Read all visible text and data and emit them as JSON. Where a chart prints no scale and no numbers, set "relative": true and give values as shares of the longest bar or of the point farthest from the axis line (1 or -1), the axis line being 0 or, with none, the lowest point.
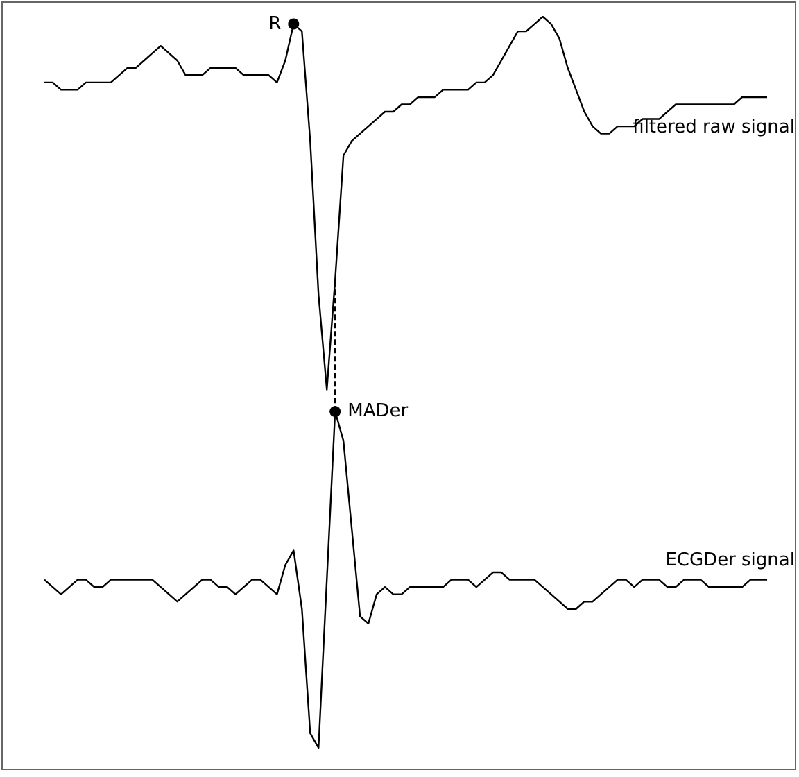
{
  "chart_data": {
    "type": "line",
    "relative": true,
    "marker": "none",
    "line_style": "solid",
    "categories": [
      null,
      null,
      null,
      null,
      null,
      null,
      null,
      null,
      null,
      null,
      null,
      null,
      null,
      null,
      null,
      null,
      null,
      null,
      null,
      null,
      null,
      null,
      null,
      null,
      null,
      null,
      null,
      null,
      null,
      null,
      null,
      null,
      null,
      null,
      null,
      null,
      null,
      null,
      null,
      null,
      null,
      null,
      null,
      null,
      null,
      null,
      null,
      null,
      null,
      null,
      null,
      null,
      null,
      null,
      null,
      null,
      null,
      null,
      null,
      null,
      null,
      null,
      null,
      null,
      null,
      null,
      null,
      null,
      null,
      null,
      null,
      null,
      null,
      null,
      null,
      null,
      null,
      null,
      null,
      null,
      null,
      null,
      null,
      null,
      null,
      null,
      null,
      null
    ],
    "series": [
      {
        "name": "filtered raw signal",
        "color": "#000000",
        "values": [
          0.91,
          0.91,
          0.9,
          0.9,
          0.9,
          0.91,
          0.91,
          0.91,
          0.91,
          0.92,
          0.93,
          0.93,
          0.94,
          0.95,
          0.96,
          0.95,
          0.94,
          0.92,
          0.92,
          0.92,
          0.93,
          0.93,
          0.93,
          0.93,
          0.92,
          0.92,
          0.92,
          0.92,
          0.91,
          0.94,
          0.99,
          0.98,
          0.83,
          0.62,
          0.49,
          0.64,
          0.81,
          0.83,
          0.84,
          0.85,
          0.86,
          0.87,
          0.87,
          0.88,
          0.88,
          0.89,
          0.89,
          0.89,
          0.9,
          0.9,
          0.9,
          0.9,
          0.91,
          0.91,
          0.92,
          0.94,
          0.96,
          0.98,
          0.98,
          0.99,
          1,
          0.99,
          0.97,
          0.93,
          0.9,
          0.87,
          0.85,
          0.84,
          0.84,
          0.85,
          0.85,
          0.85,
          0.86,
          0.86,
          0.86,
          0.87,
          0.88,
          0.88,
          0.88,
          0.88,
          0.88,
          0.88,
          0.88,
          0.88,
          0.89,
          0.89,
          0.89,
          0.89
        ]
      },
      {
        "name": "ECGDer signal",
        "color": "#000000",
        "values": [
          0.23,
          0.22,
          0.21,
          0.22,
          0.23,
          0.23,
          0.22,
          0.22,
          0.23,
          0.23,
          0.23,
          0.23,
          0.23,
          0.23,
          0.22,
          0.21,
          0.2,
          0.21,
          0.22,
          0.23,
          0.23,
          0.22,
          0.22,
          0.21,
          0.22,
          0.23,
          0.23,
          0.22,
          0.21,
          0.25,
          0.27,
          0.19,
          0.02,
          0,
          0.23,
          0.46,
          0.42,
          0.3,
          0.18,
          0.17,
          0.21,
          0.22,
          0.21,
          0.21,
          0.22,
          0.22,
          0.22,
          0.22,
          0.22,
          0.23,
          0.23,
          0.23,
          0.22,
          0.23,
          0.24,
          0.24,
          0.23,
          0.23,
          0.23,
          0.23,
          0.22,
          0.21,
          0.2,
          0.19,
          0.19,
          0.2,
          0.2,
          0.21,
          0.22,
          0.23,
          0.23,
          0.22,
          0.23,
          0.23,
          0.23,
          0.22,
          0.22,
          0.23,
          0.23,
          0.23,
          0.22,
          0.22,
          0.22,
          0.22,
          0.22,
          0.23,
          0.23,
          0.23
        ]
      }
    ],
    "annotations": [
      "R",
      "MADer"
    ]
  }
}
